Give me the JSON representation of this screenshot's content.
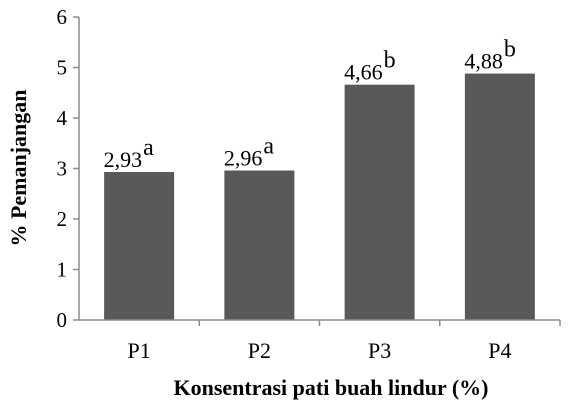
{
  "chart_data": {
    "type": "bar",
    "categories": [
      "P1",
      "P2",
      "P3",
      "P4"
    ],
    "values": [
      2.93,
      2.96,
      4.66,
      4.88
    ],
    "data_labels": [
      "2,93",
      "2,96",
      "4,66",
      "4,88"
    ],
    "significance_letters": [
      "a",
      "a",
      "b",
      "b"
    ],
    "title": "",
    "xlabel": "Konsentrasi pati buah lindur  (%)",
    "ylabel": "% Pemanjangan",
    "ylim": [
      0,
      6
    ],
    "yticks": [
      "0",
      "1",
      "2",
      "3",
      "4",
      "5",
      "6"
    ],
    "bar_color": "#595959",
    "grid": false,
    "legend": "none"
  }
}
